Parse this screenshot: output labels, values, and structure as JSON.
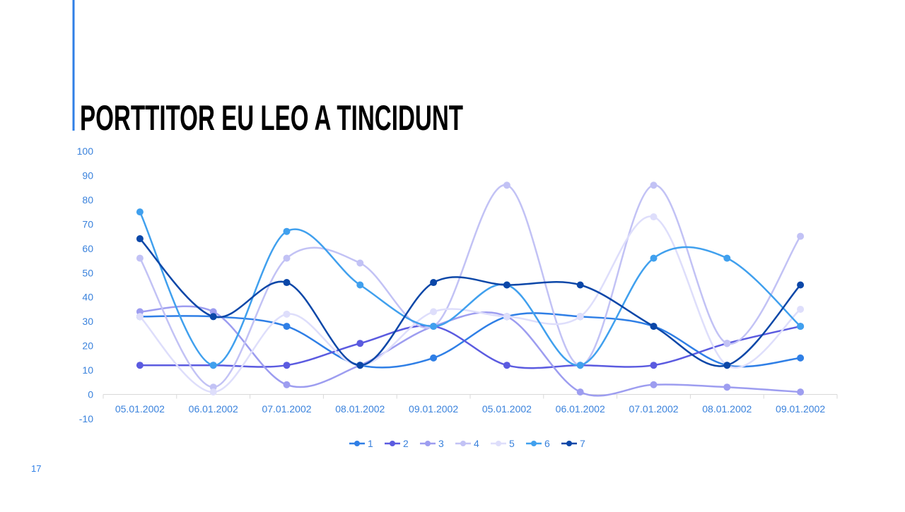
{
  "slide_number": "17",
  "chart_data": {
    "type": "line",
    "title": "PORTTITOR EU LEO A TINCIDUNT",
    "categories": [
      "05.01.2002",
      "06.01.2002",
      "07.01.2002",
      "08.01.2002",
      "09.01.2002",
      "05.01.2002",
      "06.01.2002",
      "07.01.2002",
      "08.01.2002",
      "09.01.2002"
    ],
    "series": [
      {
        "name": "1",
        "color": "#2f7fe6",
        "values": [
          32,
          32,
          28,
          12,
          15,
          32,
          32,
          28,
          12,
          15
        ]
      },
      {
        "name": "2",
        "color": "#5b5be0",
        "values": [
          12,
          12,
          12,
          21,
          28,
          12,
          12,
          12,
          21,
          28
        ]
      },
      {
        "name": "3",
        "color": "#9d9df0",
        "values": [
          34,
          34,
          4,
          12,
          28,
          32,
          1,
          4,
          3,
          1
        ]
      },
      {
        "name": "4",
        "color": "#c2c2f5",
        "values": [
          56,
          3,
          56,
          54,
          28,
          86,
          12,
          86,
          21,
          65
        ]
      },
      {
        "name": "5",
        "color": "#dedefb",
        "values": [
          32,
          1,
          33,
          12,
          34,
          32,
          32,
          73,
          12,
          35
        ]
      },
      {
        "name": "6",
        "color": "#40a0ee",
        "values": [
          75,
          12,
          67,
          45,
          28,
          45,
          12,
          56,
          56,
          28
        ]
      },
      {
        "name": "7",
        "color": "#0b47a8",
        "values": [
          64,
          32,
          46,
          12,
          46,
          45,
          45,
          28,
          12,
          45
        ]
      }
    ],
    "ylim": [
      -10,
      100
    ],
    "yticks": [
      -10,
      0,
      10,
      20,
      30,
      40,
      50,
      60,
      70,
      80,
      90,
      100
    ],
    "smooth": true,
    "legend": "bottom"
  }
}
